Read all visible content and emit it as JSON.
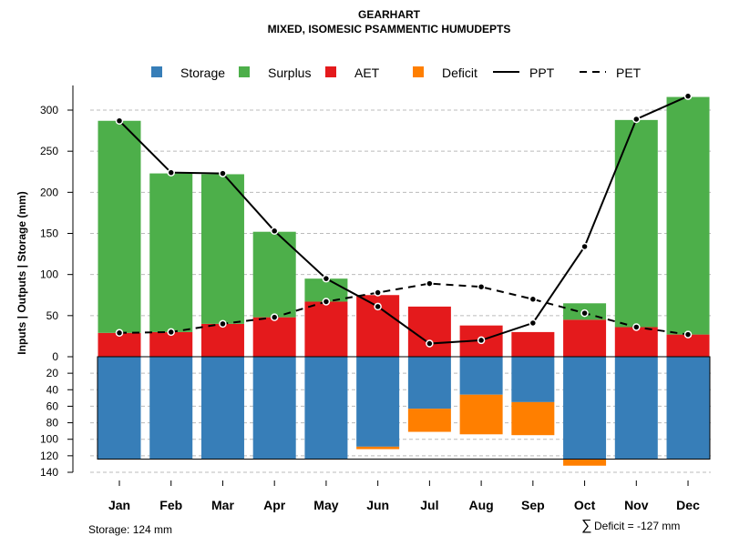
{
  "chart_data": {
    "type": "bar",
    "title": "GEARHART",
    "subtitle": "MIXED, ISOMESIC PSAMMENTIC HUMUDEPTS",
    "ylabel": "Inputs | Outputs | Storage    (mm)",
    "months": [
      "Jan",
      "Feb",
      "Mar",
      "Apr",
      "May",
      "Jun",
      "Jul",
      "Aug",
      "Sep",
      "Oct",
      "Nov",
      "Dec"
    ],
    "ylim_top": [
      0,
      300
    ],
    "ylim_bottom": [
      0,
      140
    ],
    "yticks_top": [
      0,
      50,
      100,
      150,
      200,
      250,
      300
    ],
    "yticks_bottom": [
      20,
      40,
      60,
      80,
      100,
      120,
      140
    ],
    "series": {
      "aet": [
        29,
        30,
        40,
        48,
        67,
        75,
        61,
        38,
        30,
        45,
        36,
        27
      ],
      "surplus": [
        258,
        193,
        182,
        104,
        28,
        0,
        0,
        0,
        0,
        20,
        252,
        289
      ],
      "storage": [
        124,
        124,
        124,
        124,
        124,
        109,
        63,
        46,
        55,
        124,
        124,
        124
      ],
      "deficit": [
        0,
        0,
        0,
        0,
        0,
        3,
        28,
        48,
        40,
        8,
        0,
        0
      ],
      "ppt": [
        287,
        224,
        223,
        153,
        95,
        61,
        16,
        20,
        41,
        134,
        289,
        317
      ],
      "pet": [
        29,
        30,
        40,
        48,
        67,
        78,
        89,
        85,
        70,
        53,
        36,
        27
      ]
    },
    "legend": [
      {
        "label": "Storage",
        "color": "#377eb8",
        "kind": "box"
      },
      {
        "label": "Surplus",
        "color": "#4daf4a",
        "kind": "box"
      },
      {
        "label": "AET",
        "color": "#e41a1c",
        "kind": "box"
      },
      {
        "label": "Deficit",
        "color": "#ff7f00",
        "kind": "box"
      },
      {
        "label": "PPT",
        "color": "#000000",
        "kind": "solid"
      },
      {
        "label": "PET",
        "color": "#000000",
        "kind": "dashed"
      }
    ],
    "colors": {
      "storage": "#377eb8",
      "surplus": "#4daf4a",
      "aet": "#e41a1c",
      "deficit": "#ff7f00",
      "line": "#000000",
      "grid": "#bbbbbb"
    },
    "storage_label": "Storage: 124 mm",
    "deficit_sum_symbol": "∑",
    "deficit_label": "Deficit = -127 mm"
  }
}
